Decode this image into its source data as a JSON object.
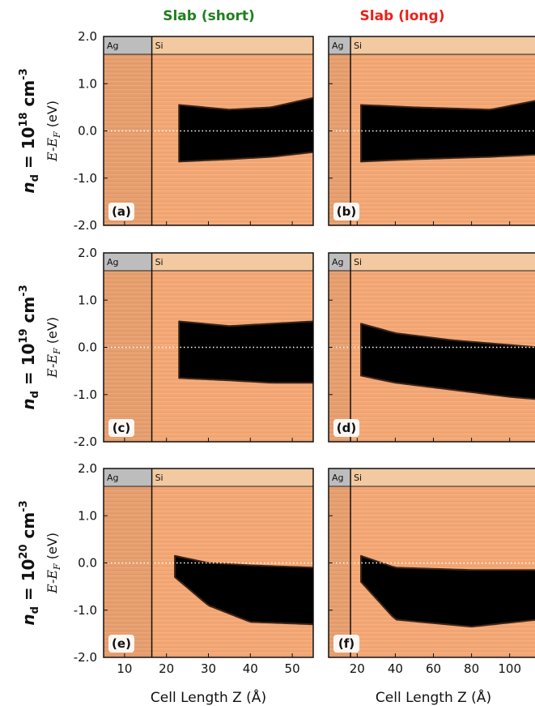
{
  "figure": {
    "column_titles": [
      {
        "text": "Slab (short)",
        "color": "#1f7f1f"
      },
      {
        "text": "Slab (long)",
        "color": "#e8211b"
      }
    ],
    "row_labels": [
      {
        "prefix": "n",
        "subscript": "d",
        "equals": " = 10",
        "exponent": "18",
        "unit": " cm",
        "unit_exponent": "-3"
      },
      {
        "prefix": "n",
        "subscript": "d",
        "equals": " = 10",
        "exponent": "19",
        "unit": " cm",
        "unit_exponent": "-3"
      },
      {
        "prefix": "n",
        "subscript": "d",
        "equals": " = 10",
        "exponent": "20",
        "unit": " cm",
        "unit_exponent": "-3"
      }
    ],
    "ylabel": "E-E_F (eV)",
    "xlabel": "Cell Length Z (Å)",
    "region_labels": [
      "Ag",
      "Si"
    ],
    "colors": {
      "ag_strip": "#bdbdbd",
      "si_strip": "#f2c9a0",
      "density": "#f3a774",
      "gap": "#000000",
      "fermi_line": "#ffffff"
    }
  },
  "chart_data": [
    {
      "type": "heatmap",
      "panel_label": "(a)",
      "column": "Slab (short)",
      "row_doping": "1e18 cm^-3",
      "x_ticks": [
        10,
        20,
        30,
        40,
        50
      ],
      "xlim": [
        5,
        55
      ],
      "y_ticks": [
        -2.0,
        -1.0,
        0.0,
        1.0,
        2.0
      ],
      "ylim": [
        -2.0,
        2.0
      ],
      "interface_z": 16.5,
      "gap_start_z": 23,
      "band_edges": [
        {
          "z": 23,
          "vbm": -0.65,
          "cbm": 0.55
        },
        {
          "z": 35,
          "vbm": -0.6,
          "cbm": 0.45
        },
        {
          "z": 45,
          "vbm": -0.55,
          "cbm": 0.5
        },
        {
          "z": 55,
          "vbm": -0.45,
          "cbm": 0.7
        }
      ],
      "fermi_level": 0.0
    },
    {
      "type": "heatmap",
      "panel_label": "(b)",
      "column": "Slab (long)",
      "row_doping": "1e18 cm^-3",
      "x_ticks": [
        20,
        40,
        60,
        80,
        100
      ],
      "xlim": [
        5,
        115
      ],
      "y_ticks": [
        -2.0,
        -1.0,
        0.0,
        1.0,
        2.0
      ],
      "ylim": [
        -2.0,
        2.0
      ],
      "interface_z": 16.5,
      "gap_start_z": 22,
      "band_edges": [
        {
          "z": 22,
          "vbm": -0.65,
          "cbm": 0.55
        },
        {
          "z": 50,
          "vbm": -0.6,
          "cbm": 0.5
        },
        {
          "z": 90,
          "vbm": -0.55,
          "cbm": 0.45
        },
        {
          "z": 115,
          "vbm": -0.5,
          "cbm": 0.65
        }
      ],
      "fermi_level": 0.0
    },
    {
      "type": "heatmap",
      "panel_label": "(c)",
      "column": "Slab (short)",
      "row_doping": "1e19 cm^-3",
      "x_ticks": [
        10,
        20,
        30,
        40,
        50
      ],
      "xlim": [
        5,
        55
      ],
      "y_ticks": [
        -2.0,
        -1.0,
        0.0,
        1.0,
        2.0
      ],
      "ylim": [
        -2.0,
        2.0
      ],
      "interface_z": 16.5,
      "gap_start_z": 23,
      "band_edges": [
        {
          "z": 23,
          "vbm": -0.65,
          "cbm": 0.55
        },
        {
          "z": 35,
          "vbm": -0.7,
          "cbm": 0.45
        },
        {
          "z": 45,
          "vbm": -0.75,
          "cbm": 0.5
        },
        {
          "z": 55,
          "vbm": -0.75,
          "cbm": 0.55
        }
      ],
      "fermi_level": 0.0
    },
    {
      "type": "heatmap",
      "panel_label": "(d)",
      "column": "Slab (long)",
      "row_doping": "1e19 cm^-3",
      "x_ticks": [
        20,
        40,
        60,
        80,
        100
      ],
      "xlim": [
        5,
        115
      ],
      "y_ticks": [
        -2.0,
        -1.0,
        0.0,
        1.0,
        2.0
      ],
      "ylim": [
        -2.0,
        2.0
      ],
      "interface_z": 16.5,
      "gap_start_z": 22,
      "band_edges": [
        {
          "z": 22,
          "vbm": -0.6,
          "cbm": 0.5
        },
        {
          "z": 40,
          "vbm": -0.75,
          "cbm": 0.3
        },
        {
          "z": 70,
          "vbm": -0.9,
          "cbm": 0.15
        },
        {
          "z": 100,
          "vbm": -1.05,
          "cbm": 0.05
        },
        {
          "z": 115,
          "vbm": -1.1,
          "cbm": 0.0
        }
      ],
      "fermi_level": 0.0
    },
    {
      "type": "heatmap",
      "panel_label": "(e)",
      "column": "Slab (short)",
      "row_doping": "1e20 cm^-3",
      "x_ticks": [
        10,
        20,
        30,
        40,
        50
      ],
      "xlim": [
        5,
        55
      ],
      "y_ticks": [
        -2.0,
        -1.0,
        0.0,
        1.0,
        2.0
      ],
      "ylim": [
        -2.0,
        2.0
      ],
      "interface_z": 16.5,
      "gap_start_z": 22,
      "band_edges": [
        {
          "z": 22,
          "vbm": -0.3,
          "cbm": 0.15
        },
        {
          "z": 30,
          "vbm": -0.9,
          "cbm": 0.0
        },
        {
          "z": 40,
          "vbm": -1.25,
          "cbm": -0.05
        },
        {
          "z": 55,
          "vbm": -1.3,
          "cbm": -0.1
        }
      ],
      "fermi_level": 0.0
    },
    {
      "type": "heatmap",
      "panel_label": "(f)",
      "column": "Slab (long)",
      "row_doping": "1e20 cm^-3",
      "x_ticks": [
        20,
        40,
        60,
        80,
        100
      ],
      "xlim": [
        5,
        115
      ],
      "y_ticks": [
        -2.0,
        -1.0,
        0.0,
        1.0,
        2.0
      ],
      "ylim": [
        -2.0,
        2.0
      ],
      "interface_z": 16.5,
      "gap_start_z": 22,
      "band_edges": [
        {
          "z": 22,
          "vbm": -0.4,
          "cbm": 0.15
        },
        {
          "z": 40,
          "vbm": -1.2,
          "cbm": -0.1
        },
        {
          "z": 80,
          "vbm": -1.35,
          "cbm": -0.15
        },
        {
          "z": 115,
          "vbm": -1.2,
          "cbm": -0.15
        }
      ],
      "fermi_level": 0.0
    }
  ]
}
